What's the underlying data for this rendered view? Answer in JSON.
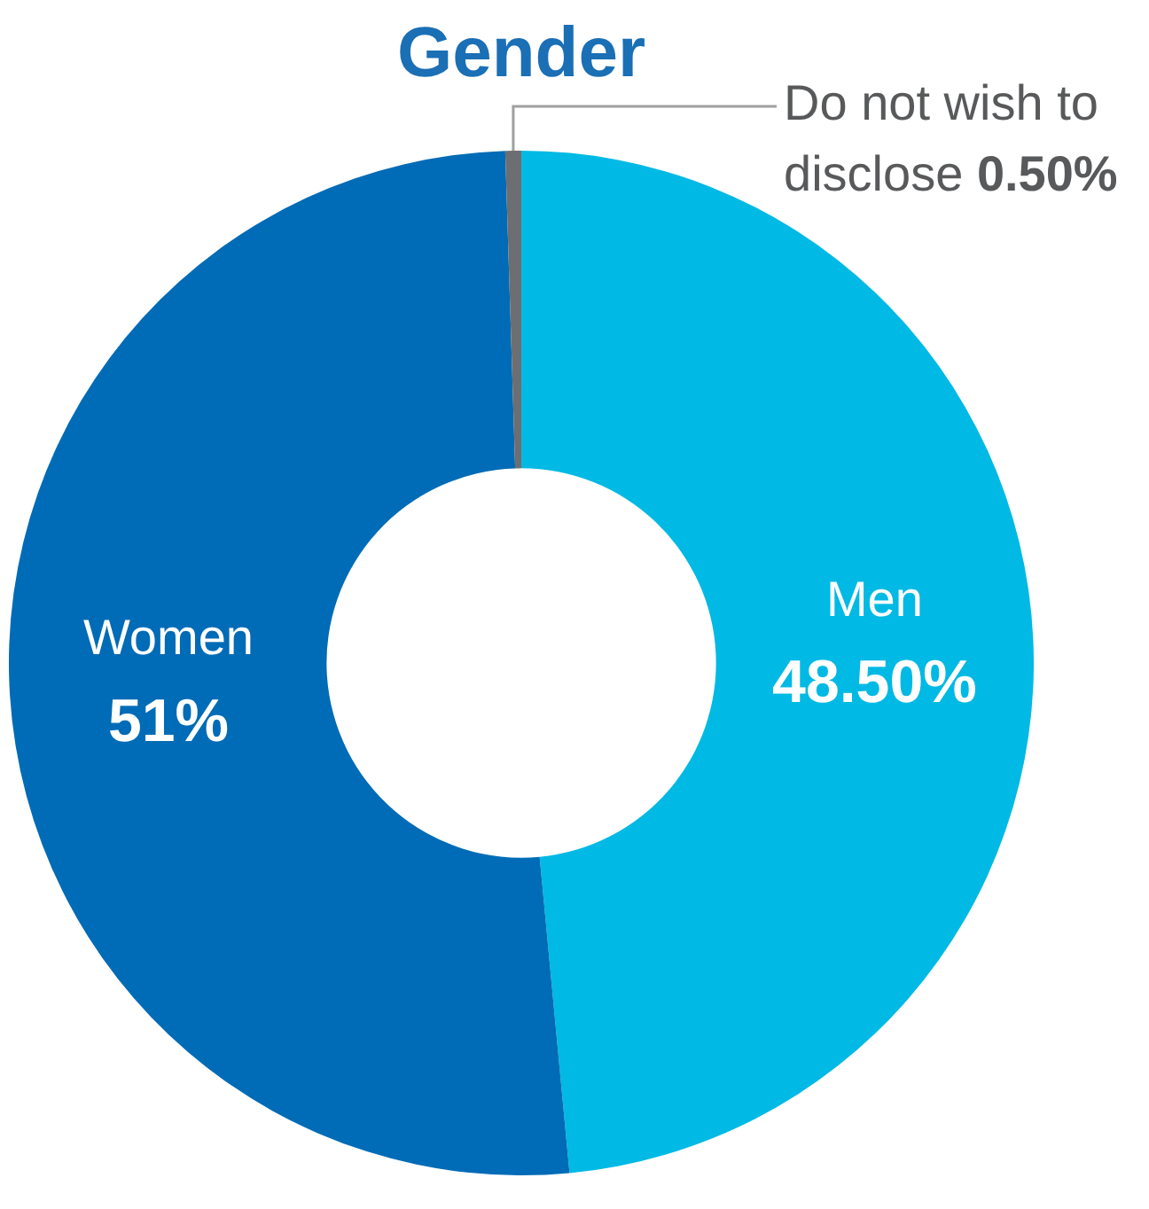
{
  "chart_data": {
    "type": "donut",
    "title": "Gender",
    "categories": [
      "Men",
      "Women",
      "Do not wish to disclose"
    ],
    "values": [
      48.5,
      51,
      0.5
    ],
    "value_labels": [
      "48.50%",
      "51%",
      "0.50%"
    ],
    "colors": [
      "#00b9e4",
      "#006bb6",
      "#6d6e71"
    ],
    "legend": false
  }
}
